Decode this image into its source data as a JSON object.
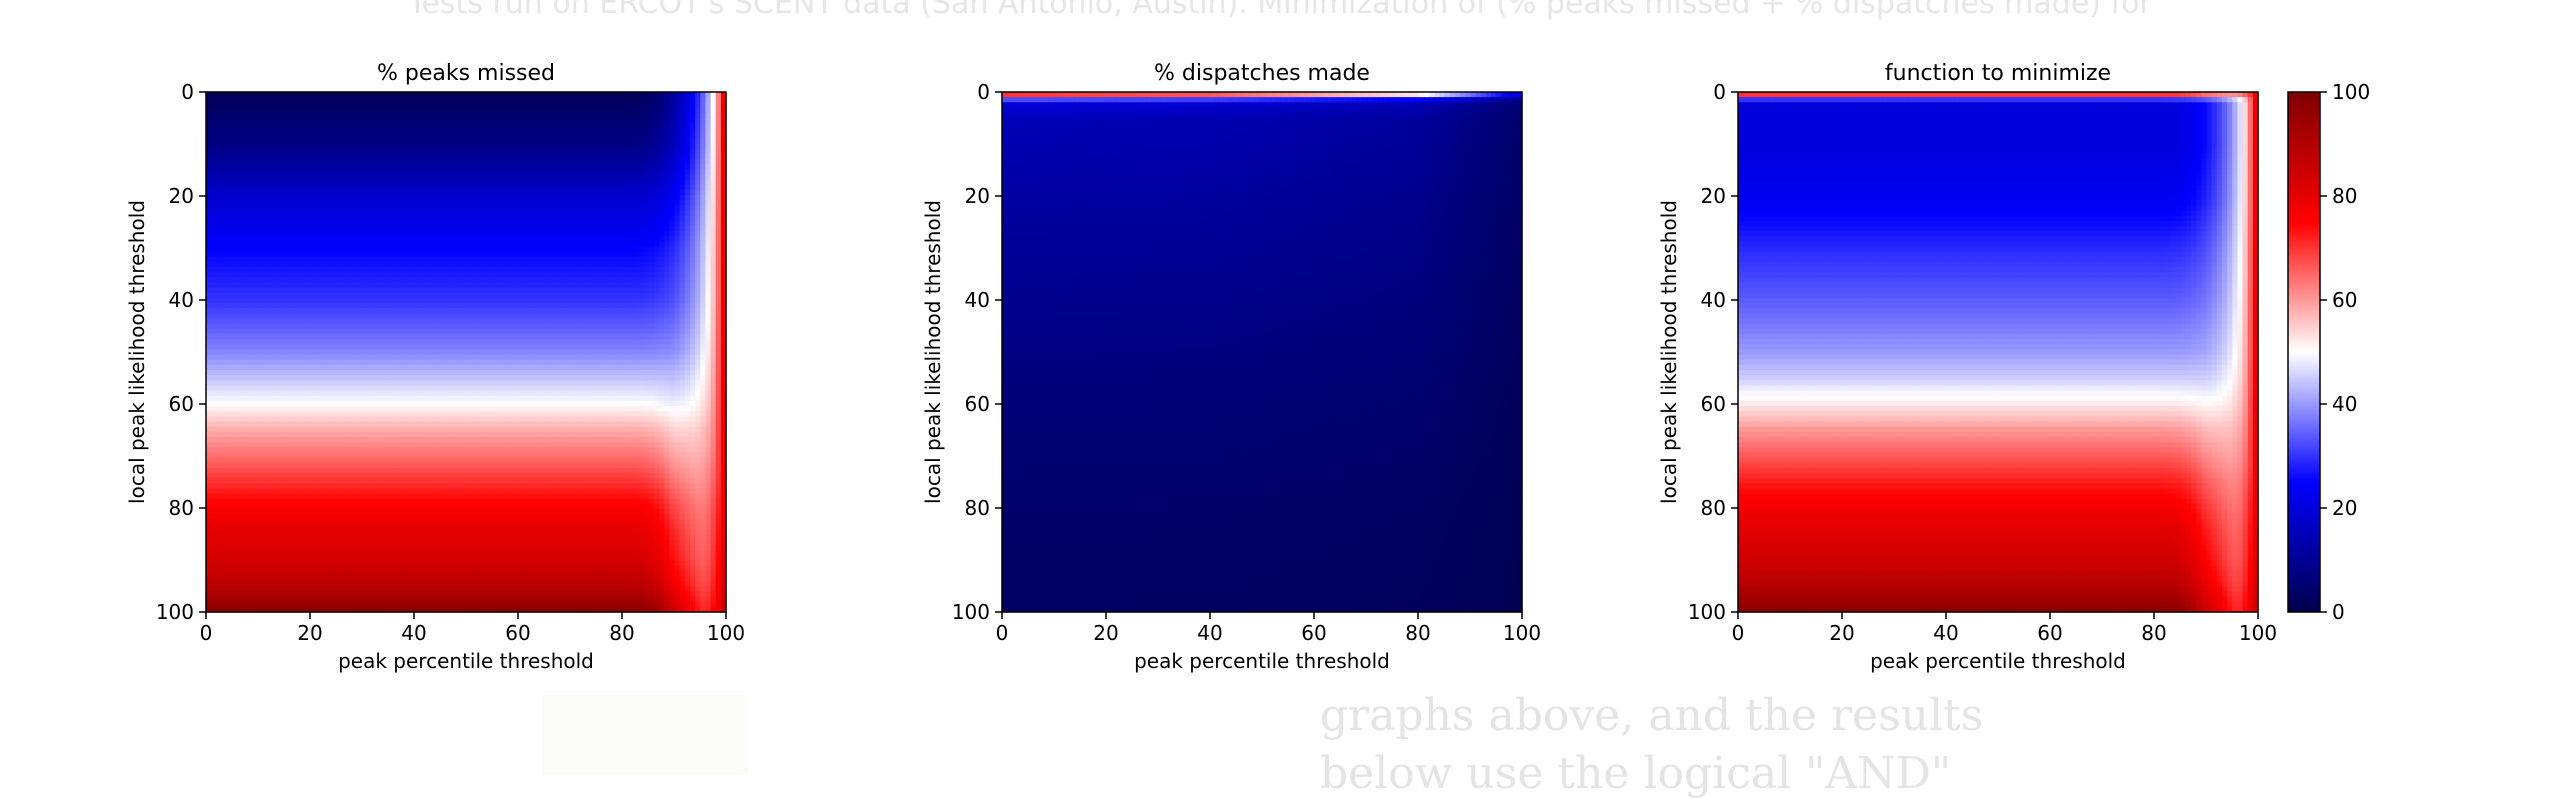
{
  "page": {
    "top_text": "Tests run on ERCOT's SCENT data (San Antonio, Austin). Minimization of (% peaks missed + % dispatches made) for",
    "bottom_text_1": "graphs above, and the results",
    "bottom_text_2": "below use the logical \"AND\""
  },
  "colormap": {
    "name": "seismic",
    "stops": [
      "#00004c",
      "#0000ff",
      "#ffffff",
      "#ff0000",
      "#7f0000"
    ]
  },
  "chart_data": [
    {
      "type": "heatmap",
      "title": "% peaks missed",
      "xlabel": "peak percentile threshold",
      "ylabel": "local peak likelihood threshold",
      "xlim": [
        0,
        100
      ],
      "ylim": [
        100,
        0
      ],
      "x_ticks": [
        "0",
        "20",
        "40",
        "60",
        "80",
        "100"
      ],
      "y_ticks": [
        "0",
        "20",
        "40",
        "60",
        "80",
        "100"
      ],
      "y_rows": [
        0,
        10,
        20,
        30,
        40,
        50,
        55,
        60,
        65,
        70,
        75,
        80,
        85,
        90,
        95,
        100
      ],
      "row_values": [
        2,
        8,
        18,
        25,
        30,
        38,
        44,
        50,
        58,
        64,
        70,
        76,
        80,
        83,
        88,
        97
      ],
      "x_cols": [
        0,
        80,
        90,
        95,
        97,
        98.5,
        100
      ],
      "col_values": [
        null,
        null,
        42,
        52,
        58,
        65,
        78
      ]
    },
    {
      "type": "heatmap",
      "title": "% dispatches made",
      "xlabel": "peak percentile threshold",
      "ylabel": "local peak likelihood threshold",
      "xlim": [
        0,
        100
      ],
      "ylim": [
        100,
        0
      ],
      "x_ticks": [
        "0",
        "20",
        "40",
        "60",
        "80",
        "100"
      ],
      "y_ticks": [
        "0",
        "20",
        "40",
        "60",
        "80",
        "100"
      ],
      "y_rows": [
        0,
        0.7,
        1.5,
        5,
        20,
        40,
        60,
        80,
        100
      ],
      "row_values": [
        70,
        40,
        20,
        15,
        12,
        9,
        6,
        4,
        3
      ],
      "x_cols": [
        0,
        40,
        80,
        100
      ],
      "x_factor": [
        1.0,
        0.95,
        0.75,
        0.3
      ]
    },
    {
      "type": "heatmap",
      "title": "function to minimize",
      "xlabel": "peak percentile threshold",
      "ylabel": "local peak likelihood threshold",
      "xlim": [
        0,
        100
      ],
      "ylim": [
        100,
        0
      ],
      "x_ticks": [
        "0",
        "20",
        "40",
        "60",
        "80",
        "100"
      ],
      "y_ticks": [
        "0",
        "20",
        "40",
        "60",
        "80",
        "100"
      ],
      "y_rows": [
        0,
        1,
        2,
        10,
        20,
        30,
        40,
        50,
        55,
        60,
        65,
        70,
        75,
        80,
        85,
        90,
        95,
        100
      ],
      "row_values": [
        70,
        30,
        20,
        20,
        23,
        29,
        34,
        40,
        45,
        52,
        60,
        66,
        72,
        77,
        81,
        84,
        89,
        97
      ],
      "x_cols": [
        0,
        80,
        90,
        95,
        97,
        98.5,
        100
      ],
      "col_values": [
        null,
        null,
        45,
        53,
        58,
        65,
        78
      ]
    }
  ],
  "colorbar": {
    "range": [
      0,
      100
    ],
    "ticks": [
      "0",
      "20",
      "40",
      "60",
      "80",
      "100"
    ]
  }
}
